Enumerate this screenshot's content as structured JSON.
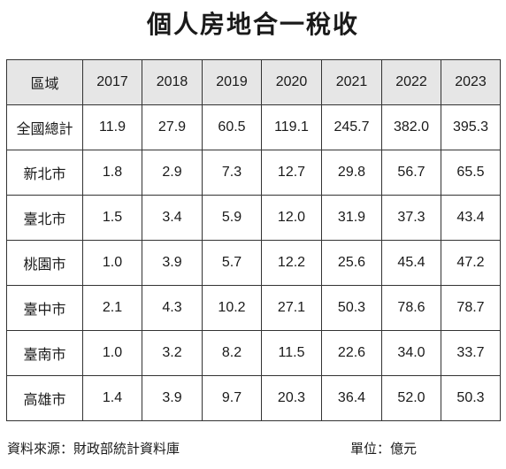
{
  "title": "個人房地合一稅收",
  "table": {
    "headers": [
      "區域",
      "2017",
      "2018",
      "2019",
      "2020",
      "2021",
      "2022",
      "2023"
    ],
    "rows": [
      [
        "全國總計",
        "11.9",
        "27.9",
        "60.5",
        "119.1",
        "245.7",
        "382.0",
        "395.3"
      ],
      [
        "新北市",
        "1.8",
        "2.9",
        "7.3",
        "12.7",
        "29.8",
        "56.7",
        "65.5"
      ],
      [
        "臺北市",
        "1.5",
        "3.4",
        "5.9",
        "12.0",
        "31.9",
        "37.3",
        "43.4"
      ],
      [
        "桃園市",
        "1.0",
        "3.9",
        "5.7",
        "12.2",
        "25.6",
        "45.4",
        "47.2"
      ],
      [
        "臺中市",
        "2.1",
        "4.3",
        "10.2",
        "27.1",
        "50.3",
        "78.6",
        "78.7"
      ],
      [
        "臺南市",
        "1.0",
        "3.2",
        "8.2",
        "11.5",
        "22.6",
        "34.0",
        "33.7"
      ],
      [
        "高雄市",
        "1.4",
        "3.9",
        "9.7",
        "20.3",
        "36.4",
        "52.0",
        "50.3"
      ]
    ]
  },
  "footer": {
    "source": "資料來源：財政部統計資料庫",
    "unit": "單位：億元"
  },
  "colors": {
    "header_bg": "#e6e6e6",
    "border": "#333333",
    "text": "#1a1a1a"
  }
}
